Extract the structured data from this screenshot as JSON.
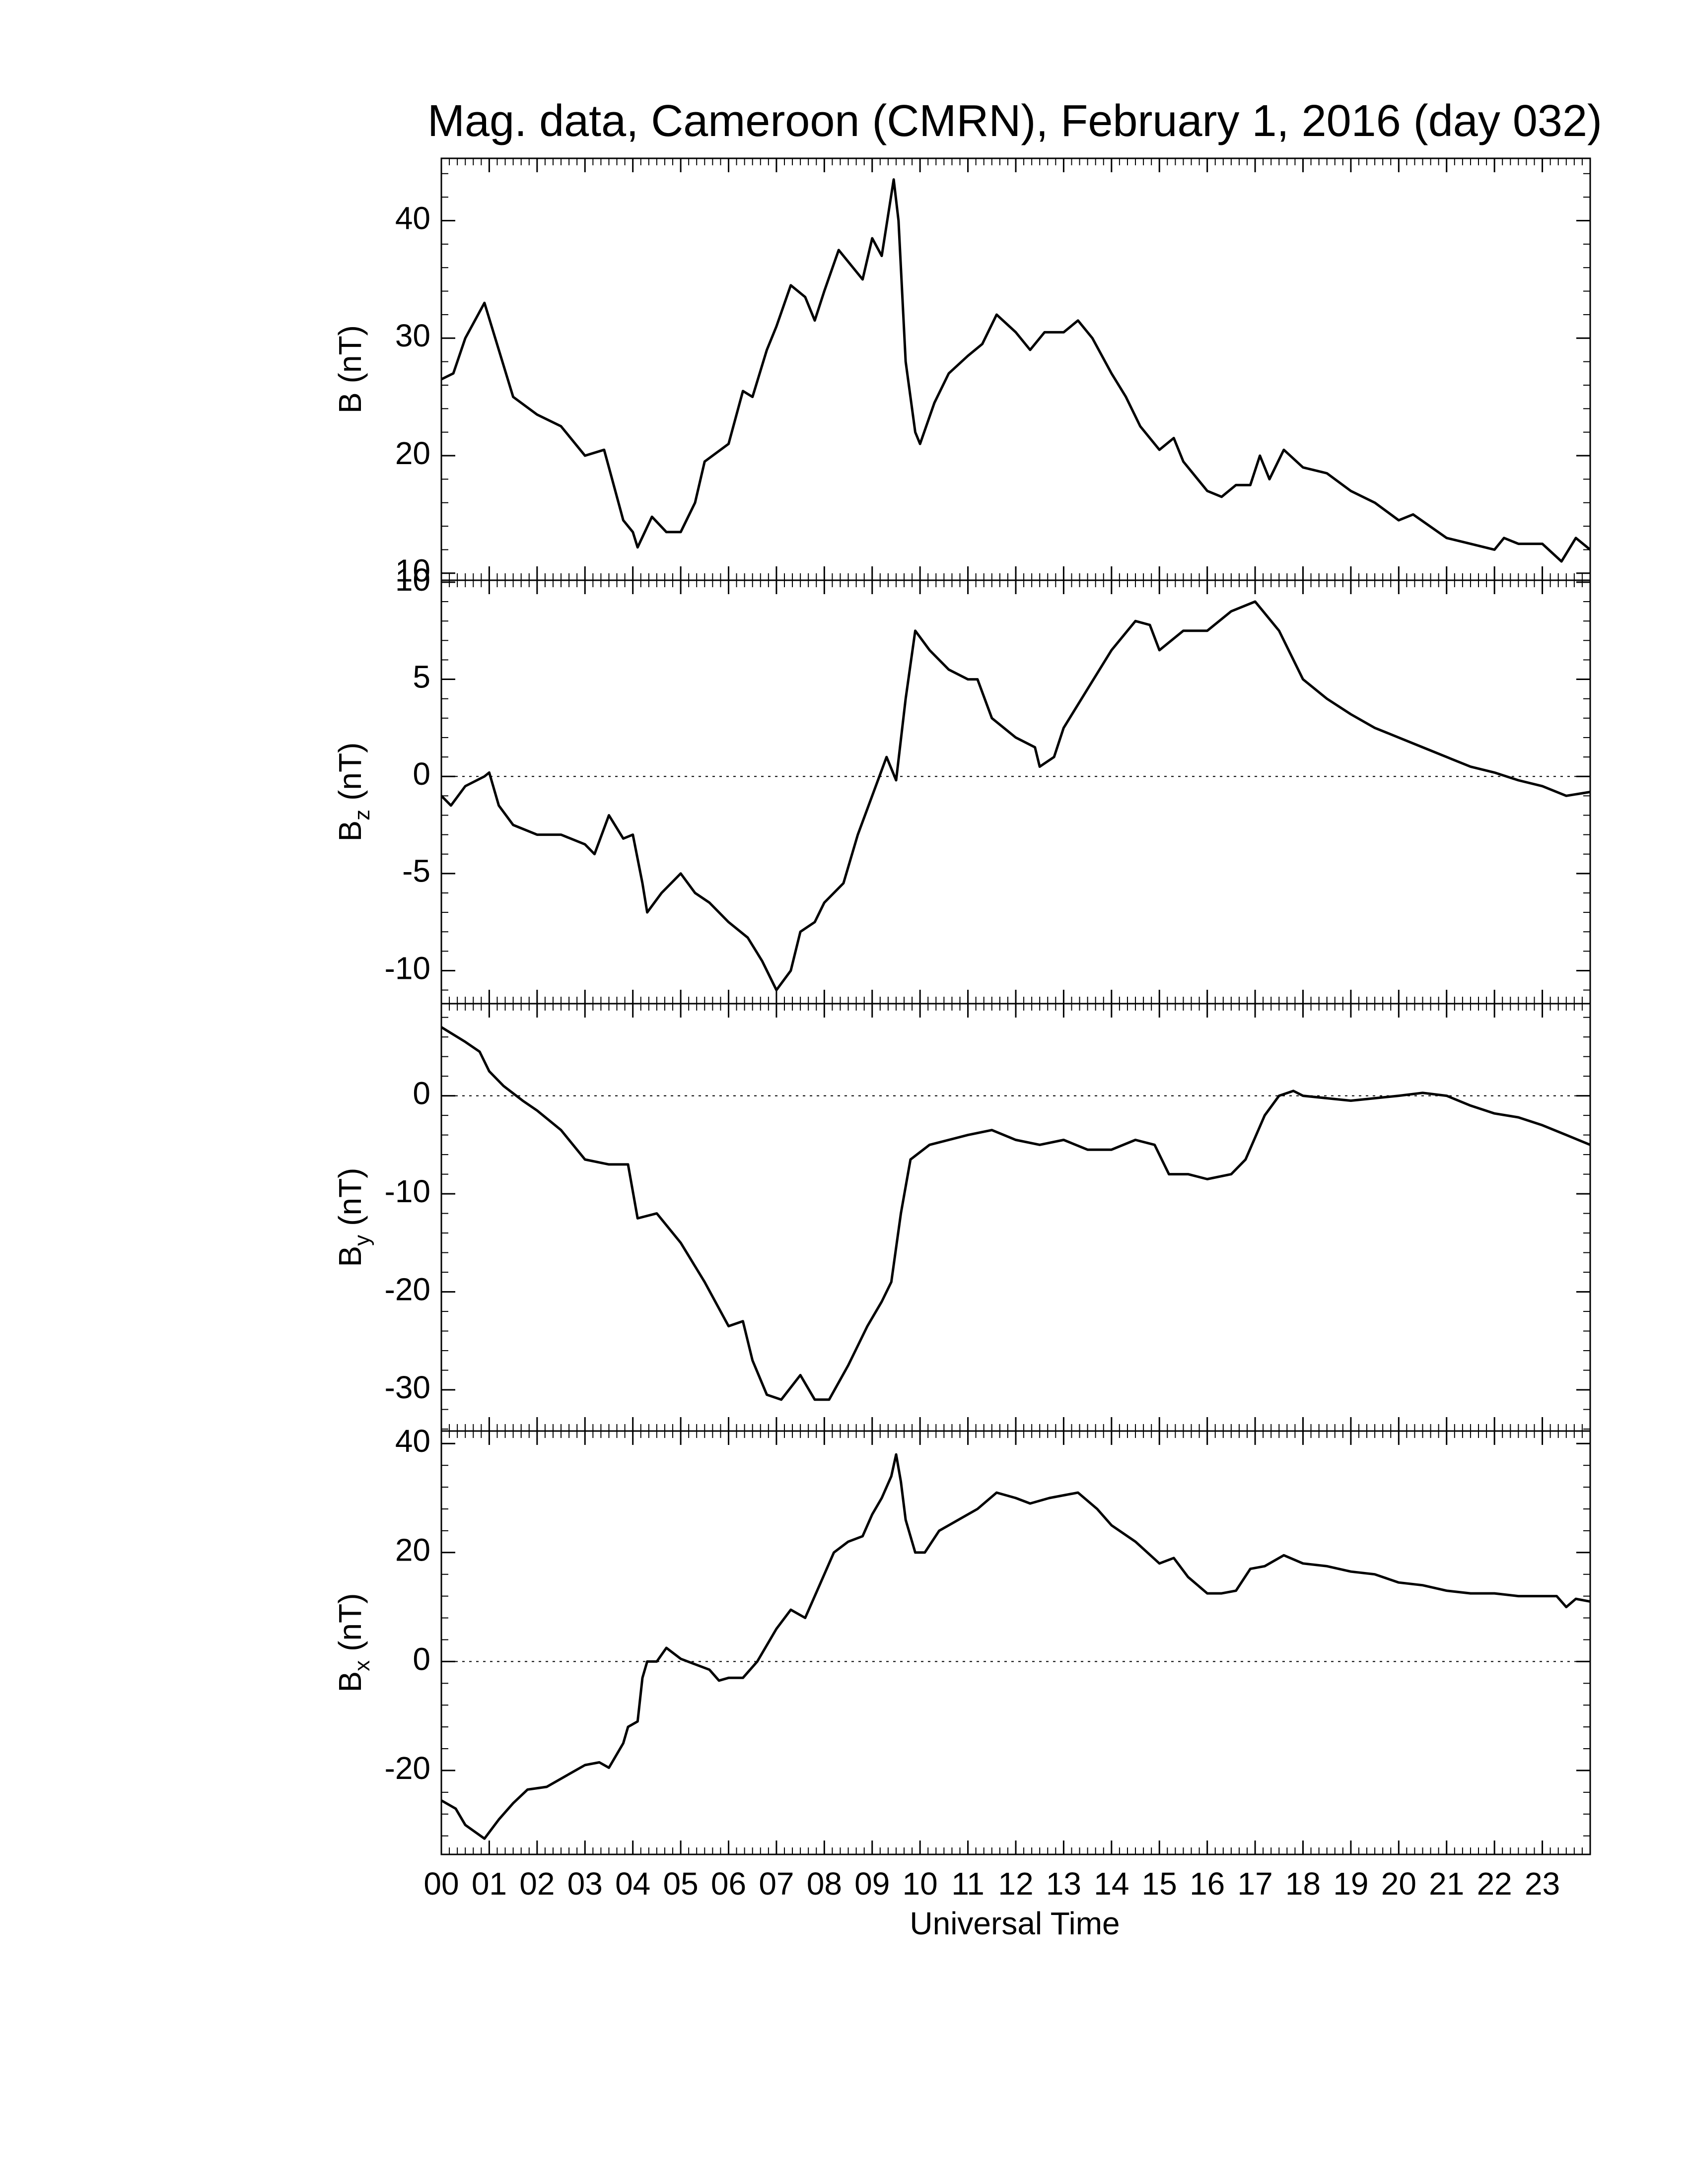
{
  "chart_data": [
    {
      "type": "line",
      "title": "Mag. data, Cameroon (CMRN), February 1, 2016 (day 032)",
      "ylabel": {
        "main": "B",
        "unit": "(nT)"
      },
      "color": "#000000",
      "xlim": [
        0,
        24
      ],
      "ylim": [
        9.4,
        45.3
      ],
      "yticks": [
        10,
        20,
        30,
        40
      ],
      "zero_line": false,
      "x": [
        0,
        0.25,
        0.5,
        0.9,
        1.2,
        1.5,
        2,
        2.5,
        3,
        3.4,
        3.5,
        3.8,
        4,
        4.1,
        4.4,
        4.7,
        5,
        5.3,
        5.5,
        6,
        6.3,
        6.5,
        6.8,
        7,
        7.3,
        7.6,
        7.8,
        8,
        8.3,
        8.6,
        8.8,
        9,
        9.2,
        9.45,
        9.55,
        9.7,
        9.9,
        10,
        10.3,
        10.6,
        11,
        11.3,
        11.6,
        12,
        12.3,
        12.6,
        13,
        13.3,
        13.6,
        14,
        14.3,
        14.6,
        15,
        15.3,
        15.5,
        16,
        16.3,
        16.6,
        16.9,
        17.1,
        17.3,
        17.6,
        18,
        18.5,
        19,
        19.5,
        20,
        20.3,
        21,
        21.5,
        22,
        22.2,
        22.5,
        23,
        23.4,
        23.7,
        24
      ],
      "values": [
        26.5,
        27,
        30,
        33,
        29,
        25,
        23.5,
        22.5,
        20,
        20.5,
        19,
        14.5,
        13.5,
        12.2,
        14.8,
        13.5,
        13.5,
        16,
        19.5,
        21,
        25.5,
        25,
        29,
        31,
        34.5,
        33.5,
        31.5,
        34,
        37.5,
        36,
        35,
        38.5,
        37,
        43.5,
        40,
        28,
        22,
        21,
        24.5,
        27,
        28.5,
        29.5,
        32,
        30.5,
        29,
        30.5,
        30.5,
        31.5,
        30,
        27,
        25,
        22.5,
        20.5,
        21.5,
        19.5,
        17,
        16.5,
        17.5,
        17.5,
        20,
        18,
        20.5,
        19,
        18.5,
        17,
        16,
        14.5,
        15,
        13,
        12.5,
        12,
        13,
        12.5,
        12.5,
        11,
        13,
        12
      ]
    },
    {
      "type": "line",
      "ylabel": {
        "main": "B",
        "sub": "z",
        "unit": "(nT)"
      },
      "color": "#000000",
      "xlim": [
        0,
        24
      ],
      "ylim": [
        -11.7,
        10.1
      ],
      "yticks": [
        -10,
        -5,
        0,
        5,
        10
      ],
      "zero_line": true,
      "x": [
        0,
        0.2,
        0.5,
        0.9,
        1,
        1.2,
        1.5,
        2,
        2.5,
        3,
        3.2,
        3.5,
        3.8,
        4,
        4.2,
        4.3,
        4.6,
        5,
        5.3,
        5.6,
        6,
        6.4,
        6.7,
        7,
        7.3,
        7.5,
        7.8,
        8,
        8.4,
        8.7,
        9,
        9.3,
        9.5,
        9.7,
        9.9,
        10.2,
        10.6,
        11,
        11.2,
        11.5,
        12,
        12.4,
        12.5,
        12.8,
        13,
        13.5,
        14,
        14.5,
        14.8,
        15,
        15.5,
        16,
        16.5,
        17,
        17.5,
        18,
        18.5,
        19,
        19.5,
        20,
        20.5,
        21,
        21.5,
        22,
        22.5,
        23,
        23.5,
        24
      ],
      "values": [
        -1,
        -1.5,
        -0.5,
        0,
        0.2,
        -1.5,
        -2.5,
        -3,
        -3,
        -3.5,
        -4,
        -2,
        -3.2,
        -3,
        -5.5,
        -7,
        -6,
        -5,
        -6,
        -6.5,
        -7.5,
        -8.3,
        -9.5,
        -11,
        -10,
        -8,
        -7.5,
        -6.5,
        -5.5,
        -3,
        -1,
        1,
        -0.2,
        4,
        7.5,
        6.5,
        5.5,
        5,
        5,
        3,
        2,
        1.5,
        0.5,
        1,
        2.5,
        4.5,
        6.5,
        8,
        7.8,
        6.5,
        7.5,
        7.5,
        8.5,
        9,
        7.5,
        5,
        4,
        3.2,
        2.5,
        2,
        1.5,
        1,
        0.5,
        0.2,
        -0.2,
        -0.5,
        -1,
        -0.8
      ]
    },
    {
      "type": "line",
      "ylabel": {
        "main": "B",
        "sub": "y",
        "unit": "(nT)"
      },
      "color": "#000000",
      "xlim": [
        0,
        24
      ],
      "ylim": [
        -34.2,
        9.4
      ],
      "yticks": [
        -30,
        -20,
        -10,
        0
      ],
      "zero_line": true,
      "x": [
        0,
        0.5,
        0.8,
        1,
        1.3,
        1.7,
        2,
        2.5,
        3,
        3.5,
        3.9,
        4.1,
        4.5,
        5,
        5.5,
        6,
        6.3,
        6.5,
        6.8,
        7.1,
        7.5,
        7.8,
        8.1,
        8.5,
        8.9,
        9.2,
        9.4,
        9.6,
        9.8,
        10.2,
        11,
        11.5,
        12,
        12.5,
        13,
        13.5,
        14,
        14.5,
        14.9,
        15.2,
        15.6,
        16,
        16.5,
        16.8,
        17.2,
        17.5,
        17.8,
        18,
        19,
        20,
        20.5,
        21,
        21.5,
        22,
        22.5,
        23,
        23.5,
        24
      ],
      "values": [
        7,
        5.5,
        4.5,
        2.5,
        1,
        -0.5,
        -1.5,
        -3.5,
        -6.5,
        -7,
        -7,
        -12.5,
        -12,
        -15,
        -19,
        -23.5,
        -23,
        -27,
        -30.5,
        -31,
        -28.5,
        -31,
        -31,
        -27.5,
        -23.5,
        -21,
        -19,
        -12,
        -6.5,
        -5,
        -4,
        -3.5,
        -4.5,
        -5,
        -4.5,
        -5.5,
        -5.5,
        -4.5,
        -5,
        -8,
        -8,
        -8.5,
        -8,
        -6.5,
        -2,
        0,
        0.5,
        0,
        -0.5,
        0,
        0.3,
        0,
        -1,
        -1.8,
        -2.2,
        -3,
        -4,
        -5
      ]
    },
    {
      "type": "line",
      "ylabel": {
        "main": "B",
        "sub": "x",
        "unit": "(nT)"
      },
      "color": "#000000",
      "xlabel": "Universal Time",
      "xlim": [
        0,
        24
      ],
      "ylim": [
        -35.4,
        42.3
      ],
      "yticks": [
        -20,
        0,
        20,
        40
      ],
      "zero_line": true,
      "xticks": [
        {
          "value": 0,
          "label": "00"
        },
        {
          "value": 1,
          "label": "01"
        },
        {
          "value": 2,
          "label": "02"
        },
        {
          "value": 3,
          "label": "03"
        },
        {
          "value": 4,
          "label": "04"
        },
        {
          "value": 5,
          "label": "05"
        },
        {
          "value": 6,
          "label": "06"
        },
        {
          "value": 7,
          "label": "07"
        },
        {
          "value": 8,
          "label": "08"
        },
        {
          "value": 9,
          "label": "09"
        },
        10,
        11,
        12,
        13,
        14,
        15,
        16,
        17,
        18,
        19,
        20,
        21,
        22,
        23
      ],
      "x": [
        0,
        0.3,
        0.5,
        0.9,
        1.2,
        1.5,
        1.8,
        2.2,
        2.6,
        3,
        3.3,
        3.5,
        3.8,
        3.9,
        4.1,
        4.2,
        4.3,
        4.5,
        4.7,
        5,
        5.3,
        5.6,
        5.8,
        6,
        6.3,
        6.6,
        7,
        7.3,
        7.6,
        7.9,
        8.2,
        8.5,
        8.8,
        9,
        9.2,
        9.4,
        9.5,
        9.6,
        9.7,
        9.9,
        10.1,
        10.4,
        10.8,
        11.2,
        11.6,
        12,
        12.3,
        12.7,
        13,
        13.3,
        13.7,
        14,
        14.5,
        15,
        15.3,
        15.6,
        16,
        16.3,
        16.6,
        16.9,
        17.2,
        17.6,
        18,
        18.5,
        19,
        19.5,
        20,
        20.5,
        21,
        21.5,
        22,
        22.5,
        23,
        23.3,
        23.5,
        23.7,
        24
      ],
      "values": [
        -25.5,
        -27,
        -30,
        -32.5,
        -29,
        -26,
        -23.5,
        -23,
        -21,
        -19,
        -18.5,
        -19.5,
        -15,
        -12,
        -11,
        -3,
        0,
        0,
        2.5,
        0.5,
        -0.5,
        -1.5,
        -3.5,
        -3,
        -3,
        0,
        6,
        9.5,
        8,
        14,
        20,
        22,
        23,
        27,
        30,
        34,
        38,
        33,
        26,
        20,
        20,
        24,
        26,
        28,
        31,
        30,
        29,
        30,
        30.5,
        31,
        28,
        25,
        22,
        18,
        19,
        15.5,
        12.5,
        12.5,
        13,
        17,
        17.5,
        19.5,
        18,
        17.5,
        16.5,
        16,
        14.5,
        14,
        13,
        12.5,
        12.5,
        12,
        12,
        12,
        10,
        11.5,
        11
      ]
    }
  ]
}
